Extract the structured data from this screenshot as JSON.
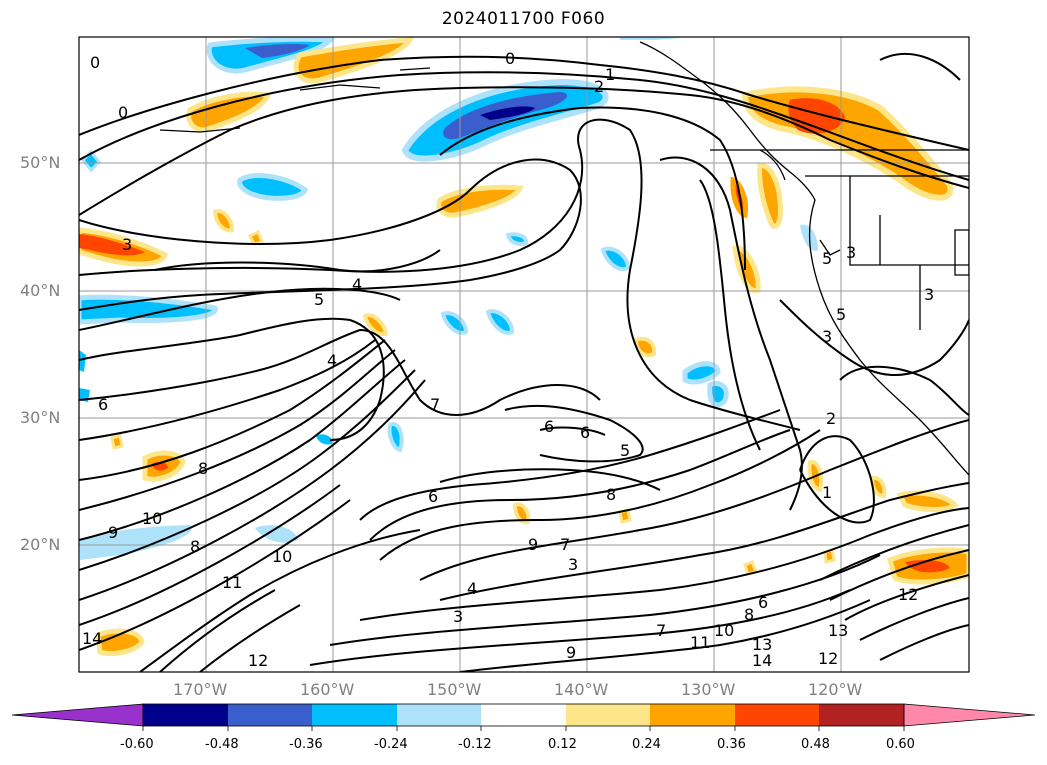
{
  "title": "2024011700 F060",
  "axes": {
    "lat_labels": [
      "50°N",
      "40°N",
      "30°N",
      "20°N"
    ],
    "lon_labels": [
      "170°W",
      "160°W",
      "150°W",
      "140°W",
      "130°W",
      "120°W"
    ]
  },
  "colorbar": {
    "ticks": [
      "-0.60",
      "-0.48",
      "-0.36",
      "-0.24",
      "-0.12",
      "0.12",
      "0.24",
      "0.36",
      "0.48",
      "0.60"
    ],
    "colors": [
      "#9932cc",
      "#00008b",
      "#3a5fcd",
      "#00bfff",
      "#aee2fa",
      "#ffffff",
      "#fde68a",
      "#ffa500",
      "#ff4500",
      "#b22222",
      "#ff88aa"
    ]
  },
  "contour_labels": [
    "0",
    "0",
    "0",
    "1",
    "1",
    "2",
    "2",
    "3",
    "3",
    "3",
    "3",
    "3",
    "3",
    "4",
    "4",
    "4",
    "5",
    "5",
    "5",
    "5",
    "6",
    "6",
    "6",
    "6",
    "6",
    "7",
    "7",
    "7",
    "8",
    "8",
    "8",
    "8",
    "9",
    "9",
    "9",
    "10",
    "10",
    "10",
    "11",
    "11",
    "12",
    "12",
    "12",
    "13",
    "13",
    "14",
    "14"
  ]
}
